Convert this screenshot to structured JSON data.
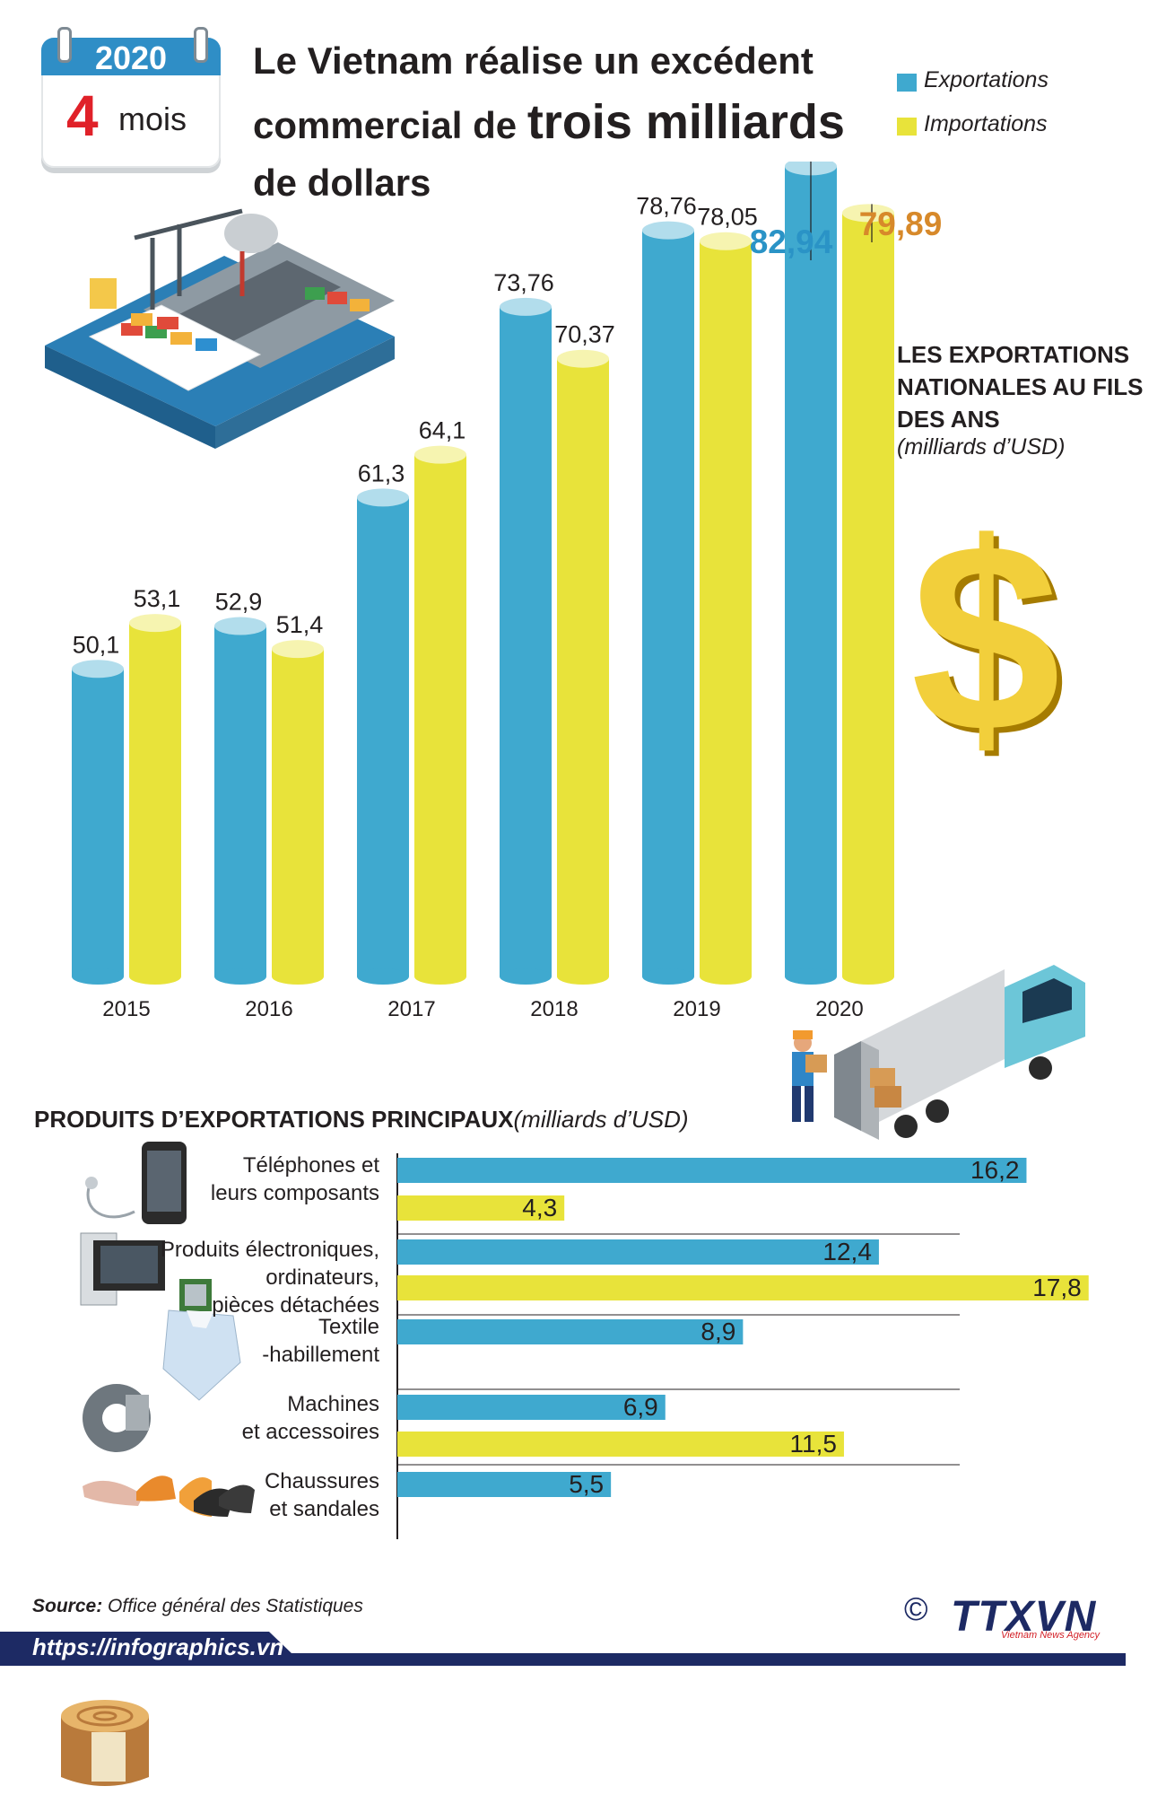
{
  "badge": {
    "year": "2020",
    "number": "4",
    "unit": "mois"
  },
  "title": {
    "part1": "Le Vietnam réalise un excédent",
    "part2": "commercial de",
    "emphasis": "trois milliards",
    "part3": "de dollars"
  },
  "legend": [
    {
      "label": "Exportations",
      "color": "#3fa9cf"
    },
    {
      "label": "Importations",
      "color": "#e8e33a"
    }
  ],
  "side_panel": {
    "title": "LES EXPORTATIONS NATIONALES AU FILS DES ANS",
    "unit": "(milliards d’USD)"
  },
  "chart_data": [
    {
      "type": "bar",
      "title": "LES EXPORTATIONS NATIONALES AU FILS DES ANS",
      "unit": "(milliards d’USD)",
      "categories": [
        "2015",
        "2016",
        "2017",
        "2018",
        "2019",
        "2020"
      ],
      "series": [
        {
          "name": "Exportations",
          "values": [
            50.1,
            52.9,
            61.3,
            73.76,
            78.76,
            82.94
          ],
          "labels": [
            "50,1",
            "52,9",
            "61,3",
            "73,76",
            "78,76",
            "82,94"
          ],
          "color": "#3fa9cf"
        },
        {
          "name": "Importations",
          "values": [
            53.1,
            51.4,
            64.1,
            70.37,
            78.05,
            79.89
          ],
          "labels": [
            "53,1",
            "51,4",
            "64,1",
            "70,37",
            "78,05",
            "79,89"
          ],
          "color": "#e8e33a"
        }
      ],
      "highlight_colors": [
        "#2a93c6",
        "#d7892a"
      ],
      "xlabel": "",
      "ylabel": ""
    },
    {
      "type": "bar",
      "orientation": "horizontal",
      "title": "PRODUITS D’EXPORTATIONS PRINCIPAUX",
      "unit": "(milliards d’USD)",
      "groups": [
        {
          "label": "Téléphones et leurs composants",
          "lines": [
            "Téléphones et",
            "leurs composants"
          ],
          "bars": [
            {
              "series": "Exportations",
              "value": 16.2,
              "label": "16,2"
            },
            {
              "series": "Importations",
              "value": 4.3,
              "label": "4,3"
            }
          ]
        },
        {
          "label": "Produits électroniques, ordinateurs, pièces détachées",
          "lines": [
            "Produits électroniques,",
            "ordinateurs,",
            "pièces détachées"
          ],
          "bars": [
            {
              "series": "Exportations",
              "value": 12.4,
              "label": "12,4"
            },
            {
              "series": "Importations",
              "value": 17.8,
              "label": "17,8"
            }
          ]
        },
        {
          "label": "Textile -habillement",
          "lines": [
            "Textile",
            "-habillement"
          ],
          "bars": [
            {
              "series": "Exportations",
              "value": 8.9,
              "label": "8,9"
            }
          ]
        },
        {
          "label": "Machines et accessoires",
          "lines": [
            "Machines",
            "et accessoires"
          ],
          "bars": [
            {
              "series": "Exportations",
              "value": 6.9,
              "label": "6,9"
            },
            {
              "series": "Importations",
              "value": 11.5,
              "label": "11,5"
            }
          ]
        },
        {
          "label": "Chaussures et sandales",
          "lines": [
            "Chaussures",
            "et sandales"
          ],
          "bars": [
            {
              "series": "Exportations",
              "value": 5.5,
              "label": "5,5"
            }
          ]
        }
      ]
    }
  ],
  "footer": {
    "source_label": "Source:",
    "source_text": "Office général des Statistiques",
    "url": "https://infographics.vn",
    "copyright": "©",
    "logo": "TTXVN",
    "logo_sub": "Vietnam News Agency"
  },
  "colors": {
    "band": "#1d2a64",
    "accent_red": "#e02129"
  },
  "icons": [
    "calendar-icon",
    "port-illustration",
    "dollar-icon",
    "truck-illustration",
    "phone-icon",
    "computer-icon",
    "shirt-icon",
    "gear-icon",
    "shoes-icon",
    "wood-stump-icon"
  ]
}
